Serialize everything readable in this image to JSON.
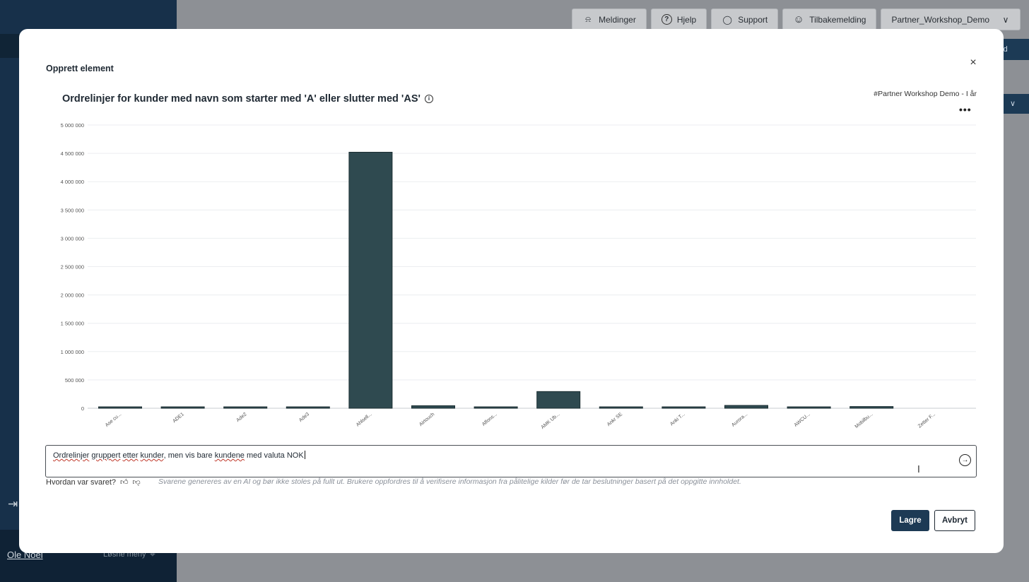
{
  "background": {
    "topbar": [
      {
        "label": "Meldinger",
        "icon": "bell-icon",
        "glyph": "⍾"
      },
      {
        "label": "Hjelp",
        "icon": "help-icon",
        "glyph": "?"
      },
      {
        "label": "Support",
        "icon": "chat-icon",
        "glyph": "◯"
      },
      {
        "label": "Tilbakemelding",
        "icon": "smiley-icon",
        "glyph": "☺"
      },
      {
        "label": "Partner_Workshop_Demo",
        "icon": "chevron-down-icon",
        "glyph": "∨"
      }
    ],
    "side_button_text": "rd",
    "user_name": "Ole Noel",
    "unpin_label": "Løsne meny"
  },
  "modal": {
    "title": "Opprett element",
    "close_glyph": "×",
    "chart_title": "Ordrelinjer for kunder med navn som starter med 'A' eller slutter med 'AS'",
    "source": "#Partner Workshop Demo - I år",
    "menu_glyph": "•••",
    "prompt": {
      "w1": "Ordrelinjer",
      "s1": " ",
      "w2": "gruppert",
      "s2": " ",
      "w3": "etter",
      "s3": " ",
      "w4": "kunder",
      "s4": ", men vis bare ",
      "w5": "kundene",
      "s5": " med valuta NOK"
    },
    "feedback_question": "Hvordan var svaret?",
    "disclaimer": "Svarene genereres av en AI og bør ikke stoles på fullt ut. Brukere oppfordres til å verifisere informasjon fra pålitelige kilder før de tar beslutninger basert på det oppgitte innholdet.",
    "save_label": "Lagre",
    "cancel_label": "Avbryt"
  },
  "chart_data": {
    "type": "bar",
    "title": "Ordrelinjer for kunder med navn som starter med 'A' eller slutter med 'AS'",
    "categories": [
      "Ase cu...",
      "ADE1",
      "Ade2",
      "Ade3",
      "Ahlsell...",
      "Airtouch",
      "Alfons...",
      "AMK Ub...",
      "Ankr SE",
      "Anki T...",
      "Aurora...",
      "AWCU...",
      "Mobilbu...",
      "Zetter F..."
    ],
    "values": [
      10000,
      20000,
      20000,
      20000,
      4520000,
      45000,
      20000,
      295000,
      15000,
      20000,
      50000,
      10000,
      30000,
      0
    ],
    "yticks": [
      "0",
      "500 000",
      "1 000 000",
      "1 500 000",
      "2 000 000",
      "2 500 000",
      "3 000 000",
      "3 500 000",
      "4 000 000",
      "4 500 000",
      "5 000 000"
    ],
    "ylim": [
      0,
      5000000
    ],
    "bar_color": "#2f4a50",
    "grid": true
  }
}
